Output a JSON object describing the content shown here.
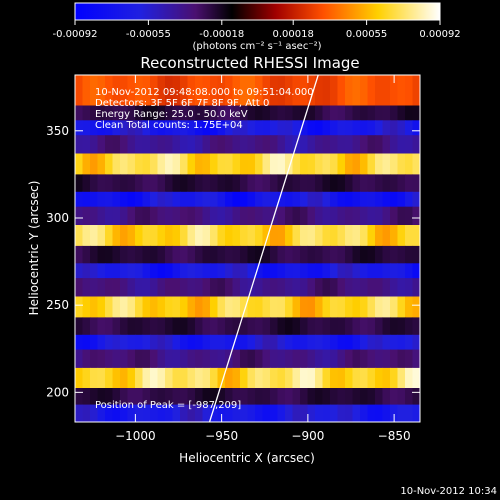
{
  "chart_data": {
    "type": "heatmap",
    "title": "Reconstructed RHESSI Image",
    "xlabel": "Heliocentric X (arcsec)",
    "ylabel": "Heliocentric Y (arcsec)",
    "xlim": [
      -1035,
      -835
    ],
    "ylim": [
      183,
      382
    ],
    "x_ticks": [
      -1000,
      -950,
      -900,
      -850
    ],
    "x_tick_labels": [
      "−1000",
      "−950",
      "−900",
      "−850"
    ],
    "y_ticks": [
      200,
      250,
      300,
      350
    ],
    "y_tick_labels": [
      "200",
      "250",
      "300",
      "350"
    ],
    "colorbar": {
      "range": [
        -0.00092,
        0.00092
      ],
      "ticks": [
        -0.00092,
        -0.00055,
        -0.00018,
        0.00018,
        0.00055,
        0.00092
      ],
      "tick_labels": [
        "-0.00092",
        "-0.00055",
        "-0.00018",
        "0.00018",
        "0.00055",
        "0.00092"
      ],
      "unit_label": "(photons cm⁻² s⁻¹ asec⁻²)"
    },
    "info_lines": [
      "10-Nov-2012 09:48:08.000 to 09:51:04.000",
      "Detectors: 3F 5F 6F 7F 8F 9F, Att 0",
      "Energy Range: 25.0 - 50.0 keV",
      "Clean     Total counts: 1.75E+04"
    ],
    "peak_label": "Position of Peak = [-987,209]",
    "peak": [
      -987,
      209
    ],
    "bands": [
      {
        "y": 369,
        "value": 0.0004
      },
      {
        "y": 360,
        "value": -0.0003
      },
      {
        "y": 352,
        "value": -0.00085
      },
      {
        "y": 343,
        "value": -0.0005
      },
      {
        "y": 331,
        "value": 0.00088
      },
      {
        "y": 319,
        "value": -0.0003
      },
      {
        "y": 311,
        "value": -0.00088
      },
      {
        "y": 302,
        "value": -0.00045
      },
      {
        "y": 290,
        "value": 0.00085
      },
      {
        "y": 278,
        "value": -0.0003
      },
      {
        "y": 270,
        "value": -0.00085
      },
      {
        "y": 261,
        "value": -0.00045
      },
      {
        "y": 249,
        "value": 0.00082
      },
      {
        "y": 237,
        "value": -0.0003
      },
      {
        "y": 229,
        "value": -0.00082
      },
      {
        "y": 220,
        "value": -0.00045
      },
      {
        "y": 208,
        "value": 0.0009
      },
      {
        "y": 197,
        "value": -0.0003
      },
      {
        "y": 189,
        "value": -0.0008
      }
    ],
    "limb_points": [
      [
        -957,
        183
      ],
      [
        -894,
        382
      ]
    ],
    "grid": false,
    "legend": "none"
  },
  "footer": {
    "timestamp": "10-Nov-2012 10:34"
  },
  "colors": {
    "background": "#000000",
    "foreground": "#ffffff",
    "limb": "#ffffff"
  }
}
